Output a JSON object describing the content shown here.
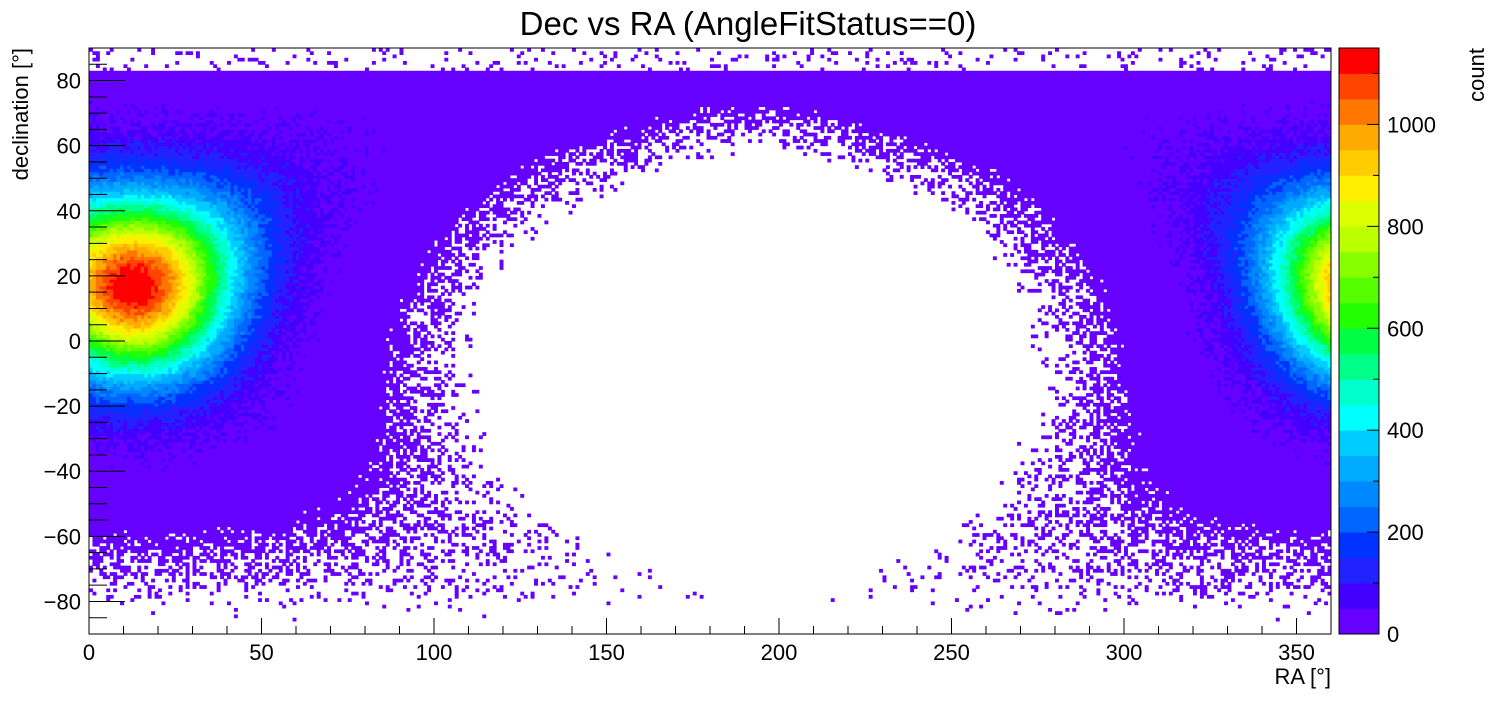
{
  "chart_data": {
    "type": "heatmap",
    "title": "Dec vs RA (AngleFitStatus==0)",
    "xlabel": "RA [°]",
    "ylabel": "declination [°]",
    "zlabel": "count",
    "xlim": [
      0,
      360
    ],
    "ylim": [
      -90,
      90
    ],
    "zlim": [
      0,
      1150
    ],
    "x_ticks": [
      "0",
      "50",
      "100",
      "150",
      "200",
      "250",
      "300",
      "350"
    ],
    "y_ticks": [
      "−80",
      "−60",
      "−40",
      "−20",
      "0",
      "20",
      "40",
      "60",
      "80"
    ],
    "z_ticks": [
      "0",
      "200",
      "400",
      "600",
      "800",
      "1000"
    ],
    "grid": false,
    "colorbar": "right",
    "bins": {
      "x": 360,
      "y": 180
    },
    "hotspot": {
      "ra": 13,
      "dec": 17,
      "peak_count": 1150
    },
    "palette": [
      "#6600ff",
      "#4400ff",
      "#2222ff",
      "#0033ff",
      "#0066ff",
      "#0088ff",
      "#00aaff",
      "#00ccff",
      "#00ffff",
      "#00ffcc",
      "#00ff88",
      "#00ff44",
      "#22ff00",
      "#55ff00",
      "#88ff00",
      "#bbff00",
      "#ddff00",
      "#ffee00",
      "#ffcc00",
      "#ffaa00",
      "#ff7700",
      "#ff4400",
      "#ff0000"
    ]
  }
}
